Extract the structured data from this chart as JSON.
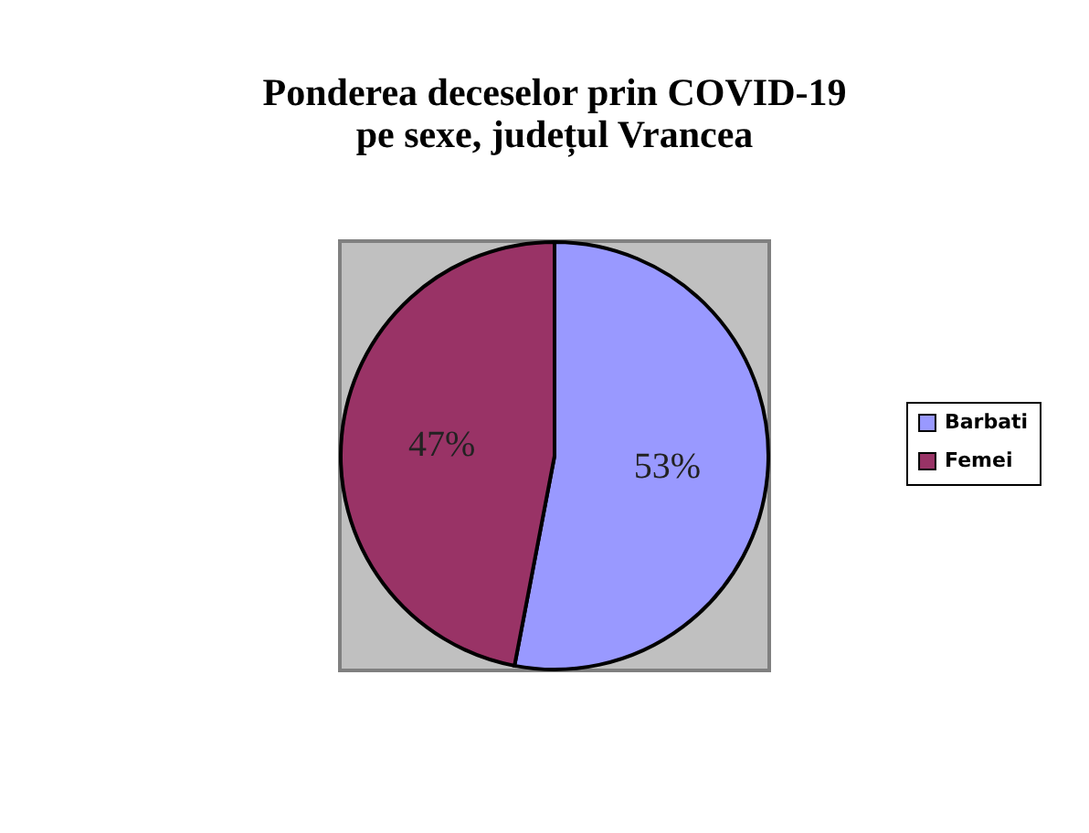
{
  "chart_data": {
    "type": "pie",
    "title": "Ponderea deceselor prin COVID-19\npe sexe, județul Vrancea",
    "categories": [
      "Barbati",
      "Femei"
    ],
    "values": [
      53,
      47
    ],
    "colors": [
      "#9999ff",
      "#993366"
    ],
    "value_labels": [
      "53%",
      "47%"
    ],
    "legend": "right"
  }
}
